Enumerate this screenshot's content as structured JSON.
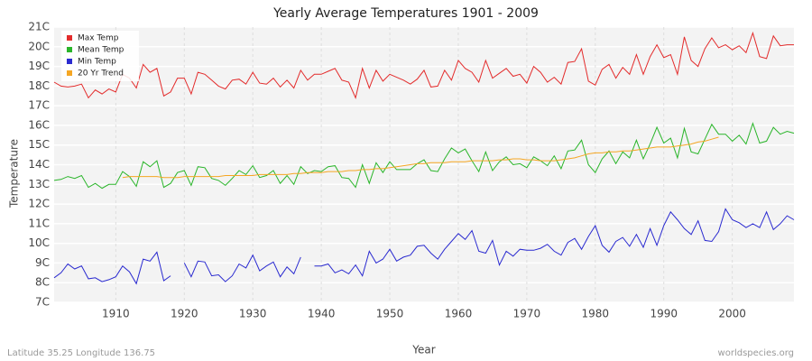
{
  "chart_data": {
    "type": "line",
    "title": "Yearly Average Temperatures 1901 - 2009",
    "x_label": "Year",
    "y_label": "Temperature",
    "source_left": "Latitude 35.25 Longitude 136.75",
    "source_right": "worldspecies.org",
    "xlim": [
      1901,
      2009
    ],
    "xticks": [
      1910,
      1920,
      1930,
      1940,
      1950,
      1960,
      1970,
      1980,
      1990,
      2000
    ],
    "ylim": [
      7,
      21
    ],
    "yticks": [
      {
        "value": 7,
        "label": "7C"
      },
      {
        "value": 8,
        "label": "8C"
      },
      {
        "value": 9,
        "label": "9C"
      },
      {
        "value": 10,
        "label": "10C"
      },
      {
        "value": 11,
        "label": "11C"
      },
      {
        "value": 12,
        "label": "12C"
      },
      {
        "value": 13,
        "label": "13C"
      },
      {
        "value": 14,
        "label": "14C"
      },
      {
        "value": 15,
        "label": "15C"
      },
      {
        "value": 16,
        "label": "16C"
      },
      {
        "value": 17,
        "label": "17C"
      },
      {
        "value": 18,
        "label": "18C"
      },
      {
        "value": 19,
        "label": "19C"
      },
      {
        "value": 20,
        "label": "20C"
      },
      {
        "value": 21,
        "label": "21C"
      }
    ],
    "grid": true,
    "legend": "top-left",
    "x": [
      1901,
      1902,
      1903,
      1904,
      1905,
      1906,
      1907,
      1908,
      1909,
      1910,
      1911,
      1912,
      1913,
      1914,
      1915,
      1916,
      1917,
      1918,
      1919,
      1920,
      1921,
      1922,
      1923,
      1924,
      1925,
      1926,
      1927,
      1928,
      1929,
      1930,
      1931,
      1932,
      1933,
      1934,
      1935,
      1936,
      1937,
      1938,
      1939,
      1940,
      1941,
      1942,
      1943,
      1944,
      1945,
      1946,
      1947,
      1948,
      1949,
      1950,
      1951,
      1952,
      1953,
      1954,
      1955,
      1956,
      1957,
      1958,
      1959,
      1960,
      1961,
      1962,
      1963,
      1964,
      1965,
      1966,
      1967,
      1968,
      1969,
      1970,
      1971,
      1972,
      1973,
      1974,
      1975,
      1976,
      1977,
      1978,
      1979,
      1980,
      1981,
      1982,
      1983,
      1984,
      1985,
      1986,
      1987,
      1988,
      1989,
      1990,
      1991,
      1992,
      1993,
      1994,
      1995,
      1996,
      1997,
      1998,
      1999,
      2000,
      2001,
      2002,
      2003,
      2004,
      2005,
      2006,
      2007,
      2008,
      2009
    ],
    "series": [
      {
        "name": "Max Temp",
        "color": "#e32b2b",
        "values": [
          18.2,
          18.0,
          17.95,
          18.0,
          18.1,
          17.4,
          17.8,
          17.6,
          17.85,
          17.7,
          18.6,
          18.4,
          17.9,
          19.1,
          18.7,
          18.9,
          17.5,
          17.7,
          18.4,
          18.4,
          17.6,
          18.7,
          18.6,
          18.3,
          18.0,
          17.85,
          18.3,
          18.35,
          18.1,
          18.7,
          18.15,
          18.1,
          18.4,
          17.95,
          18.3,
          17.9,
          18.8,
          18.3,
          18.6,
          18.6,
          18.75,
          18.9,
          18.3,
          18.2,
          17.4,
          18.9,
          17.9,
          18.8,
          18.25,
          18.6,
          18.45,
          18.3,
          18.1,
          18.35,
          18.8,
          17.95,
          18.0,
          18.8,
          18.3,
          19.3,
          18.9,
          18.7,
          18.2,
          19.3,
          18.4,
          18.65,
          18.9,
          18.5,
          18.6,
          18.15,
          19.0,
          18.7,
          18.2,
          18.45,
          18.1,
          19.2,
          19.25,
          19.9,
          18.25,
          18.05,
          18.85,
          19.1,
          18.4,
          18.95,
          18.6,
          19.6,
          18.6,
          19.5,
          20.1,
          19.45,
          19.6,
          18.6,
          20.5,
          19.3,
          19.0,
          19.9,
          20.45,
          19.95,
          20.1,
          19.85,
          20.05,
          19.7,
          20.7,
          19.5,
          19.4,
          20.55,
          20.05,
          20.1,
          20.1
        ]
      },
      {
        "name": "Mean Temp",
        "color": "#2ab52a",
        "values": [
          13.2,
          13.25,
          13.4,
          13.3,
          13.45,
          12.85,
          13.05,
          12.8,
          13.0,
          13.0,
          13.65,
          13.4,
          12.9,
          14.15,
          13.9,
          14.2,
          12.85,
          13.05,
          13.6,
          13.7,
          12.95,
          13.9,
          13.85,
          13.3,
          13.2,
          12.95,
          13.3,
          13.7,
          13.5,
          13.95,
          13.35,
          13.45,
          13.7,
          13.05,
          13.45,
          13.0,
          13.9,
          13.55,
          13.7,
          13.65,
          13.9,
          13.95,
          13.35,
          13.3,
          12.85,
          14.0,
          13.05,
          14.1,
          13.6,
          14.15,
          13.75,
          13.75,
          13.75,
          14.05,
          14.25,
          13.7,
          13.65,
          14.3,
          14.85,
          14.6,
          14.8,
          14.2,
          13.65,
          14.65,
          13.7,
          14.15,
          14.4,
          14.0,
          14.05,
          13.85,
          14.4,
          14.2,
          13.95,
          14.45,
          13.8,
          14.7,
          14.75,
          15.25,
          14.0,
          13.6,
          14.3,
          14.7,
          14.05,
          14.65,
          14.35,
          15.25,
          14.3,
          15.05,
          15.9,
          15.1,
          15.35,
          14.35,
          15.85,
          14.65,
          14.55,
          15.3,
          16.05,
          15.55,
          15.55,
          15.2,
          15.5,
          15.05,
          16.1,
          15.1,
          15.2,
          15.9,
          15.55,
          15.7,
          15.6
        ]
      },
      {
        "name": "Min Temp",
        "color": "#2a2ad0",
        "values": [
          8.25,
          8.5,
          8.95,
          8.7,
          8.85,
          8.2,
          8.25,
          8.05,
          8.15,
          8.3,
          8.85,
          8.55,
          7.95,
          9.2,
          9.1,
          9.55,
          8.1,
          8.35,
          null,
          9.0,
          8.3,
          9.1,
          9.05,
          8.35,
          8.4,
          8.05,
          8.35,
          8.95,
          8.75,
          9.4,
          8.6,
          8.85,
          9.05,
          8.3,
          8.8,
          8.45,
          9.3,
          null,
          8.85,
          8.85,
          8.95,
          8.5,
          8.65,
          8.45,
          8.9,
          8.35,
          9.6,
          9.0,
          9.2,
          9.7,
          9.1,
          9.3,
          9.4,
          9.85,
          9.9,
          9.5,
          9.2,
          9.7,
          10.1,
          10.5,
          10.2,
          10.65,
          9.6,
          9.5,
          10.15,
          8.9,
          9.6,
          9.35,
          9.7,
          9.65,
          9.65,
          9.75,
          9.95,
          9.6,
          9.4,
          10.05,
          10.25,
          9.7,
          10.35,
          10.9,
          9.9,
          9.55,
          10.1,
          10.3,
          9.85,
          10.45,
          9.8,
          10.75,
          9.9,
          10.9,
          11.6,
          11.2,
          10.75,
          10.45,
          11.15,
          10.15,
          10.1,
          10.6,
          11.75,
          11.2,
          11.05,
          10.8,
          11.0,
          10.8,
          11.6,
          10.7,
          11.0,
          11.4,
          11.2
        ]
      },
      {
        "name": "20 Yr Trend",
        "color": "#f5a623",
        "values": [
          null,
          null,
          null,
          null,
          null,
          null,
          null,
          null,
          null,
          null,
          13.35,
          13.4,
          13.4,
          13.4,
          13.4,
          13.4,
          13.35,
          13.35,
          13.35,
          13.4,
          13.4,
          13.4,
          13.4,
          13.4,
          13.4,
          13.45,
          13.45,
          13.45,
          13.45,
          13.45,
          13.5,
          13.5,
          13.5,
          13.5,
          13.5,
          13.55,
          13.55,
          13.6,
          13.6,
          13.6,
          13.65,
          13.65,
          13.65,
          13.7,
          13.7,
          13.75,
          13.75,
          13.8,
          13.8,
          13.85,
          13.9,
          13.95,
          14.0,
          14.05,
          14.05,
          14.1,
          14.1,
          14.1,
          14.15,
          14.15,
          14.15,
          14.2,
          14.2,
          14.2,
          14.2,
          14.25,
          14.25,
          14.3,
          14.3,
          14.25,
          14.25,
          14.2,
          14.2,
          14.2,
          14.25,
          14.3,
          14.35,
          14.45,
          14.55,
          14.6,
          14.6,
          14.65,
          14.65,
          14.7,
          14.7,
          14.75,
          14.8,
          14.85,
          14.9,
          14.9,
          14.9,
          14.95,
          15.0,
          15.05,
          15.15,
          15.2,
          15.3,
          15.4,
          null,
          null,
          null,
          null,
          null,
          null,
          null,
          null,
          null,
          null,
          null
        ]
      }
    ]
  }
}
